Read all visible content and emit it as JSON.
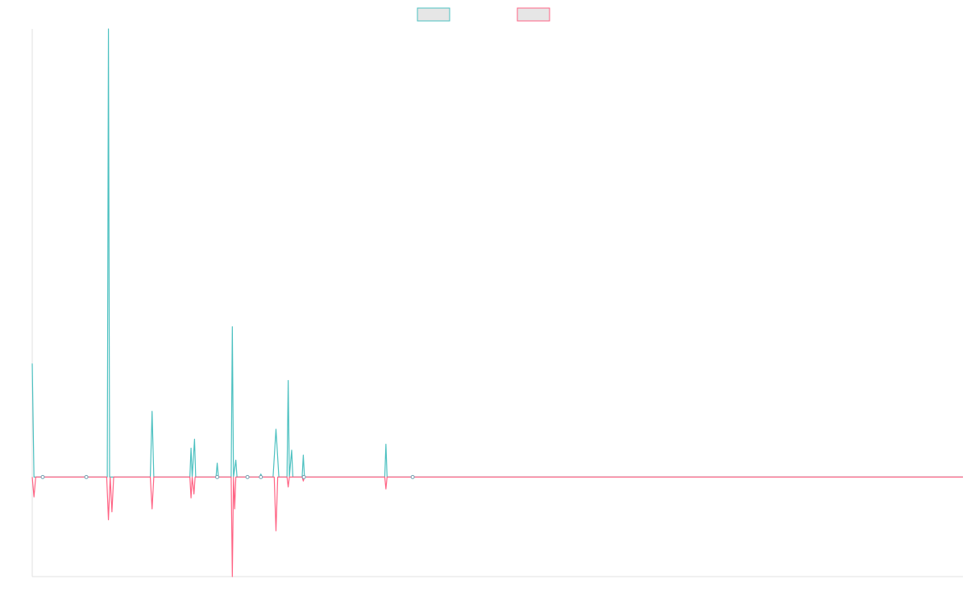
{
  "chart_data": {
    "type": "line",
    "title": "",
    "xlabel": "",
    "ylabel": "",
    "grid": false,
    "legend": {
      "placement": "top-center",
      "entries": [
        {
          "name": "",
          "color": "#4bc0c0",
          "fill": "#e6e6e6"
        },
        {
          "name": "",
          "color": "#ff6384",
          "fill": "#e6e6e6"
        }
      ]
    },
    "x_range": [
      0,
      160
    ],
    "ylim": [
      -10,
      45
    ],
    "series": [
      {
        "name": "",
        "color": "#4bc0c0",
        "points": [
          [
            0,
            11.4
          ],
          [
            0.3,
            0
          ],
          [
            1.8,
            0
          ],
          [
            9.3,
            0
          ],
          [
            12.9,
            0
          ],
          [
            13.1,
            45
          ],
          [
            13.3,
            0
          ],
          [
            20.3,
            0
          ],
          [
            20.6,
            6.6
          ],
          [
            20.9,
            0
          ],
          [
            27.1,
            0
          ],
          [
            27.3,
            2.9
          ],
          [
            27.5,
            0
          ],
          [
            27.9,
            3.8
          ],
          [
            28.1,
            0
          ],
          [
            31.6,
            0
          ],
          [
            31.8,
            1.4
          ],
          [
            32.0,
            0
          ],
          [
            34.2,
            0
          ],
          [
            34.4,
            15.1
          ],
          [
            34.6,
            0
          ],
          [
            35.0,
            1.7
          ],
          [
            35.2,
            0
          ],
          [
            39.1,
            0
          ],
          [
            39.3,
            0.3
          ],
          [
            39.5,
            0
          ],
          [
            41.4,
            0
          ],
          [
            41.9,
            4.8
          ],
          [
            42.4,
            0
          ],
          [
            43.8,
            0
          ],
          [
            44.0,
            9.7
          ],
          [
            44.2,
            0
          ],
          [
            44.6,
            2.7
          ],
          [
            44.8,
            0
          ],
          [
            46.4,
            0
          ],
          [
            46.6,
            2.2
          ],
          [
            46.8,
            0
          ],
          [
            60.6,
            0
          ],
          [
            60.8,
            3.3
          ],
          [
            61.0,
            0
          ],
          [
            61.4,
            0
          ],
          [
            65.4,
            0
          ],
          [
            160,
            0
          ]
        ]
      },
      {
        "name": "",
        "color": "#ff6384",
        "points": [
          [
            0,
            0
          ],
          [
            0.3,
            -2.0
          ],
          [
            0.6,
            0
          ],
          [
            12.8,
            0
          ],
          [
            13.1,
            -4.3
          ],
          [
            13.4,
            0
          ],
          [
            13.7,
            -3.5
          ],
          [
            14.0,
            0
          ],
          [
            20.3,
            0
          ],
          [
            20.6,
            -3.2
          ],
          [
            20.9,
            0
          ],
          [
            27.1,
            0
          ],
          [
            27.3,
            -2.1
          ],
          [
            27.5,
            0
          ],
          [
            27.8,
            -1.7
          ],
          [
            28.0,
            0
          ],
          [
            34.2,
            0
          ],
          [
            34.4,
            -10
          ],
          [
            34.6,
            0
          ],
          [
            34.8,
            -3.2
          ],
          [
            35.0,
            0
          ],
          [
            41.6,
            0
          ],
          [
            41.9,
            -5.4
          ],
          [
            42.2,
            0
          ],
          [
            43.8,
            0
          ],
          [
            44.0,
            -1.0
          ],
          [
            44.2,
            0
          ],
          [
            46.4,
            0
          ],
          [
            46.6,
            -0.4
          ],
          [
            46.8,
            0
          ],
          [
            60.6,
            0
          ],
          [
            60.8,
            -1.2
          ],
          [
            61.0,
            0
          ],
          [
            65.4,
            0
          ],
          [
            160,
            0
          ]
        ]
      }
    ],
    "markers": [
      {
        "x": 1.8,
        "y": 0
      },
      {
        "x": 9.3,
        "y": 0
      },
      {
        "x": 31.8,
        "y": 0
      },
      {
        "x": 37.0,
        "y": 0
      },
      {
        "x": 39.3,
        "y": 0
      },
      {
        "x": 46.7,
        "y": 0
      },
      {
        "x": 65.4,
        "y": 0
      }
    ]
  }
}
